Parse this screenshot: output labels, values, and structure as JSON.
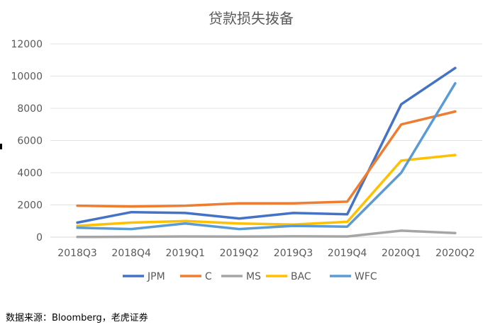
{
  "chart_data": {
    "type": "line",
    "title": "贷款损失拨备",
    "categories": [
      "2018Q3",
      "2018Q4",
      "2019Q1",
      "2019Q2",
      "2019Q3",
      "2019Q4",
      "2020Q1",
      "2020Q2"
    ],
    "ylim": [
      0,
      12000
    ],
    "yticks": [
      "0",
      "2000",
      "4000",
      "6000",
      "8000",
      "10000",
      "12000"
    ],
    "grid": "horizontal",
    "legend_position": "bottom",
    "series": [
      {
        "name": "JPM",
        "color": "#4472C4",
        "values": [
          900,
          1550,
          1500,
          1150,
          1500,
          1420,
          8250,
          10500
        ]
      },
      {
        "name": "C",
        "color": "#ED7D31",
        "values": [
          1950,
          1900,
          1950,
          2100,
          2100,
          2200,
          7000,
          7800
        ]
      },
      {
        "name": "MS",
        "color": "#A5A5A5",
        "values": [
          10,
          20,
          40,
          30,
          50,
          40,
          400,
          250
        ]
      },
      {
        "name": "BAC",
        "color": "#FFC000",
        "values": [
          700,
          900,
          1000,
          850,
          780,
          950,
          4750,
          5100
        ]
      },
      {
        "name": "WFC",
        "color": "#5B9BD5",
        "values": [
          580,
          500,
          850,
          500,
          700,
          650,
          4000,
          9550
        ]
      }
    ]
  },
  "footer": {
    "source_text": "数据来源：Bloomberg，老虎证券"
  }
}
